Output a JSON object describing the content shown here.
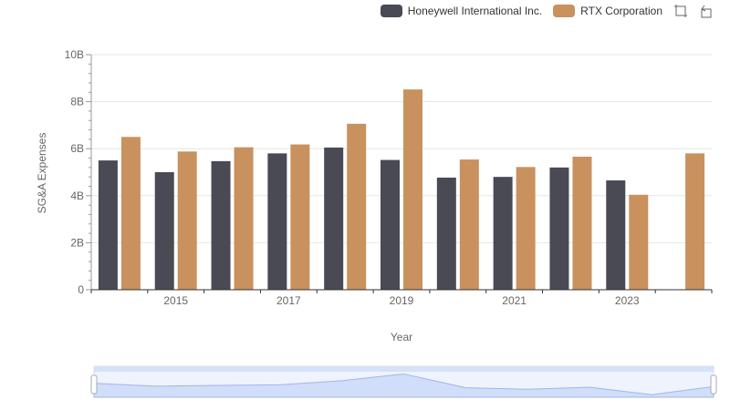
{
  "chart_data": {
    "type": "bar",
    "xlabel": "Year",
    "ylabel": "SG&A Expenses",
    "ylim": [
      0,
      10000000000
    ],
    "y_ticks": [
      "0",
      "2B",
      "4B",
      "6B",
      "8B",
      "10B"
    ],
    "x_ticks": [
      "2015",
      "2017",
      "2019",
      "2021",
      "2023"
    ],
    "categories": [
      2014,
      2015,
      2016,
      2017,
      2018,
      2019,
      2020,
      2021,
      2022,
      2023,
      2024
    ],
    "series": [
      {
        "name": "Honeywell International Inc.",
        "color": "#4a4a55",
        "values": [
          5500000000,
          5000000000,
          5470000000,
          5800000000,
          6050000000,
          5520000000,
          4770000000,
          4800000000,
          5200000000,
          4650000000,
          null
        ]
      },
      {
        "name": "RTX Corporation",
        "color": "#c9915e",
        "values": [
          6500000000,
          5880000000,
          6060000000,
          6180000000,
          7060000000,
          8520000000,
          5540000000,
          5220000000,
          5660000000,
          4040000000,
          5800000000
        ]
      }
    ],
    "legend_position": "top-right",
    "grid": true
  },
  "toolbar": {
    "icons": [
      "zoom-icon",
      "restore-icon"
    ]
  }
}
